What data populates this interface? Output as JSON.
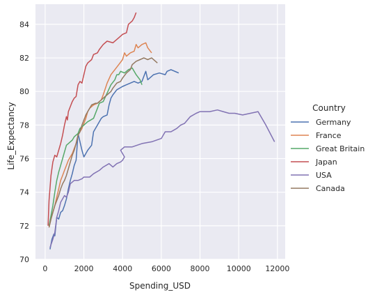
{
  "chart_data": {
    "type": "line",
    "xlabel": "Spending_USD",
    "ylabel": "Life_Expectancy",
    "xlim": [
      -500,
      12400
    ],
    "ylim": [
      70,
      85.2
    ],
    "xticks": [
      0,
      2000,
      4000,
      6000,
      8000,
      10000,
      12000
    ],
    "yticks": [
      70,
      72,
      74,
      76,
      78,
      80,
      82,
      84
    ],
    "grid": true,
    "legend": {
      "title": "Country",
      "placement": "right"
    },
    "series": [
      {
        "name": "Germany",
        "color": "#4c72b0",
        "points": [
          [
            250,
            70.6
          ],
          [
            350,
            71.2
          ],
          [
            450,
            71.5
          ],
          [
            500,
            71.4
          ],
          [
            600,
            72.5
          ],
          [
            700,
            72.4
          ],
          [
            800,
            72.8
          ],
          [
            900,
            72.9
          ],
          [
            1000,
            73.2
          ],
          [
            1100,
            73.6
          ],
          [
            1200,
            74.2
          ],
          [
            1300,
            74.7
          ],
          [
            1400,
            75.1
          ],
          [
            1500,
            75.6
          ],
          [
            1600,
            75.9
          ],
          [
            1700,
            77.5
          ],
          [
            1800,
            77.0
          ],
          [
            1900,
            76.5
          ],
          [
            2000,
            76.1
          ],
          [
            2100,
            76.3
          ],
          [
            2200,
            76.5
          ],
          [
            2400,
            76.8
          ],
          [
            2500,
            77.6
          ],
          [
            2700,
            78.0
          ],
          [
            2900,
            78.4
          ],
          [
            3000,
            78.5
          ],
          [
            3200,
            78.6
          ],
          [
            3300,
            79.2
          ],
          [
            3400,
            79.6
          ],
          [
            3500,
            79.8
          ],
          [
            3700,
            80.1
          ],
          [
            4000,
            80.3
          ],
          [
            4200,
            80.4
          ],
          [
            4400,
            80.5
          ],
          [
            4600,
            80.6
          ],
          [
            4800,
            80.5
          ],
          [
            5000,
            80.6
          ],
          [
            5100,
            80.9
          ],
          [
            5200,
            81.2
          ],
          [
            5300,
            80.7
          ],
          [
            5600,
            81.0
          ],
          [
            5900,
            81.1
          ],
          [
            6200,
            81.0
          ],
          [
            6300,
            81.2
          ],
          [
            6500,
            81.3
          ],
          [
            6900,
            81.1
          ]
        ]
      },
      {
        "name": "France",
        "color": "#dd8452",
        "points": [
          [
            200,
            71.9
          ],
          [
            300,
            72.4
          ],
          [
            400,
            72.8
          ],
          [
            500,
            73.2
          ],
          [
            600,
            73.7
          ],
          [
            700,
            74.2
          ],
          [
            800,
            74.7
          ],
          [
            900,
            75.0
          ],
          [
            1000,
            75.3
          ],
          [
            1100,
            75.6
          ],
          [
            1200,
            75.9
          ],
          [
            1400,
            76.3
          ],
          [
            1600,
            76.9
          ],
          [
            1700,
            77.4
          ],
          [
            1800,
            77.6
          ],
          [
            1900,
            77.8
          ],
          [
            2000,
            78.1
          ],
          [
            2100,
            78.4
          ],
          [
            2200,
            78.8
          ],
          [
            2300,
            79.0
          ],
          [
            2500,
            79.2
          ],
          [
            2700,
            79.3
          ],
          [
            2900,
            79.5
          ],
          [
            3000,
            79.8
          ],
          [
            3200,
            80.5
          ],
          [
            3400,
            81.0
          ],
          [
            3600,
            81.3
          ],
          [
            3800,
            81.6
          ],
          [
            4000,
            81.9
          ],
          [
            4100,
            82.3
          ],
          [
            4200,
            82.1
          ],
          [
            4400,
            82.3
          ],
          [
            4600,
            82.4
          ],
          [
            4700,
            82.8
          ],
          [
            4800,
            82.6
          ],
          [
            5000,
            82.8
          ],
          [
            5200,
            82.9
          ],
          [
            5300,
            82.6
          ],
          [
            5500,
            82.3
          ]
        ]
      },
      {
        "name": "Great Britain",
        "color": "#55a868",
        "points": [
          [
            200,
            72.0
          ],
          [
            300,
            72.6
          ],
          [
            400,
            73.2
          ],
          [
            500,
            74.0
          ],
          [
            600,
            74.7
          ],
          [
            700,
            75.2
          ],
          [
            800,
            75.6
          ],
          [
            900,
            76.0
          ],
          [
            1000,
            76.4
          ],
          [
            1100,
            76.8
          ],
          [
            1200,
            76.9
          ],
          [
            1300,
            77.0
          ],
          [
            1400,
            77.1
          ],
          [
            1500,
            77.3
          ],
          [
            1700,
            77.5
          ],
          [
            1800,
            77.8
          ],
          [
            2000,
            78.0
          ],
          [
            2200,
            78.2
          ],
          [
            2500,
            78.4
          ],
          [
            2700,
            79.0
          ],
          [
            2800,
            79.3
          ],
          [
            3000,
            79.4
          ],
          [
            3200,
            79.9
          ],
          [
            3400,
            80.4
          ],
          [
            3600,
            80.7
          ],
          [
            3700,
            81.0
          ],
          [
            3800,
            81.0
          ],
          [
            3900,
            81.2
          ],
          [
            4100,
            81.1
          ],
          [
            4300,
            81.3
          ],
          [
            4500,
            81.4
          ],
          [
            4700,
            81.0
          ],
          [
            4900,
            80.7
          ],
          [
            5000,
            80.4
          ]
        ]
      },
      {
        "name": "Japan",
        "color": "#c44e52",
        "points": [
          [
            150,
            72.0
          ],
          [
            200,
            73.5
          ],
          [
            300,
            75.0
          ],
          [
            400,
            75.8
          ],
          [
            500,
            76.2
          ],
          [
            600,
            76.1
          ],
          [
            700,
            76.5
          ],
          [
            800,
            76.9
          ],
          [
            900,
            77.4
          ],
          [
            1000,
            78.0
          ],
          [
            1100,
            78.5
          ],
          [
            1150,
            78.3
          ],
          [
            1200,
            78.8
          ],
          [
            1300,
            79.1
          ],
          [
            1400,
            79.4
          ],
          [
            1500,
            79.6
          ],
          [
            1600,
            79.7
          ],
          [
            1700,
            80.4
          ],
          [
            1800,
            80.6
          ],
          [
            1900,
            80.5
          ],
          [
            2000,
            81.0
          ],
          [
            2100,
            81.5
          ],
          [
            2200,
            81.7
          ],
          [
            2300,
            81.8
          ],
          [
            2400,
            81.9
          ],
          [
            2500,
            82.2
          ],
          [
            2700,
            82.3
          ],
          [
            2800,
            82.5
          ],
          [
            3000,
            82.8
          ],
          [
            3200,
            83.0
          ],
          [
            3500,
            82.9
          ],
          [
            3800,
            83.2
          ],
          [
            4000,
            83.4
          ],
          [
            4200,
            83.5
          ],
          [
            4300,
            84.0
          ],
          [
            4500,
            84.2
          ],
          [
            4600,
            84.4
          ],
          [
            4700,
            84.7
          ]
        ]
      },
      {
        "name": "USA",
        "color": "#8172b3",
        "points": [
          [
            250,
            70.7
          ],
          [
            400,
            71.2
          ],
          [
            500,
            71.6
          ],
          [
            600,
            72.5
          ],
          [
            700,
            72.9
          ],
          [
            800,
            73.4
          ],
          [
            900,
            73.6
          ],
          [
            1000,
            73.8
          ],
          [
            1100,
            73.7
          ],
          [
            1200,
            74.0
          ],
          [
            1300,
            74.5
          ],
          [
            1400,
            74.6
          ],
          [
            1500,
            74.7
          ],
          [
            1700,
            74.7
          ],
          [
            1900,
            74.8
          ],
          [
            2000,
            74.9
          ],
          [
            2300,
            74.9
          ],
          [
            2500,
            75.1
          ],
          [
            2800,
            75.3
          ],
          [
            3000,
            75.5
          ],
          [
            3300,
            75.7
          ],
          [
            3500,
            75.5
          ],
          [
            3700,
            75.7
          ],
          [
            3900,
            75.8
          ],
          [
            4000,
            75.9
          ],
          [
            4100,
            76.1
          ],
          [
            3900,
            76.5
          ],
          [
            4100,
            76.7
          ],
          [
            4500,
            76.7
          ],
          [
            5000,
            76.9
          ],
          [
            5500,
            77.0
          ],
          [
            6000,
            77.2
          ],
          [
            6200,
            77.6
          ],
          [
            6500,
            77.6
          ],
          [
            6800,
            77.8
          ],
          [
            7000,
            78.0
          ],
          [
            7200,
            78.1
          ],
          [
            7500,
            78.5
          ],
          [
            7800,
            78.7
          ],
          [
            8000,
            78.8
          ],
          [
            8200,
            78.8
          ],
          [
            8500,
            78.8
          ],
          [
            8900,
            78.9
          ],
          [
            9200,
            78.8
          ],
          [
            9500,
            78.7
          ],
          [
            9800,
            78.7
          ],
          [
            10200,
            78.6
          ],
          [
            10600,
            78.7
          ],
          [
            11000,
            78.8
          ],
          [
            11400,
            78.0
          ],
          [
            11850,
            77.0
          ]
        ]
      },
      {
        "name": "Canada",
        "color": "#937860",
        "points": [
          [
            200,
            71.9
          ],
          [
            300,
            72.4
          ],
          [
            400,
            72.8
          ],
          [
            500,
            73.2
          ],
          [
            600,
            73.5
          ],
          [
            700,
            73.8
          ],
          [
            800,
            74.2
          ],
          [
            900,
            74.5
          ],
          [
            1000,
            74.7
          ],
          [
            1100,
            75.0
          ],
          [
            1200,
            75.4
          ],
          [
            1300,
            75.8
          ],
          [
            1400,
            76.2
          ],
          [
            1500,
            76.5
          ],
          [
            1600,
            76.9
          ],
          [
            1700,
            77.4
          ],
          [
            1800,
            77.6
          ],
          [
            1900,
            78.0
          ],
          [
            2000,
            78.3
          ],
          [
            2100,
            78.6
          ],
          [
            2200,
            78.8
          ],
          [
            2400,
            79.2
          ],
          [
            2600,
            79.3
          ],
          [
            2700,
            79.3
          ],
          [
            2900,
            79.5
          ],
          [
            3000,
            79.6
          ],
          [
            3200,
            79.8
          ],
          [
            3400,
            80.0
          ],
          [
            3500,
            80.2
          ],
          [
            3700,
            80.5
          ],
          [
            3900,
            80.6
          ],
          [
            4000,
            80.8
          ],
          [
            4200,
            81.1
          ],
          [
            4400,
            81.3
          ],
          [
            4500,
            81.6
          ],
          [
            4700,
            81.8
          ],
          [
            4900,
            81.9
          ],
          [
            5100,
            82.0
          ],
          [
            5300,
            81.9
          ],
          [
            5500,
            82.0
          ],
          [
            5800,
            81.7
          ]
        ]
      }
    ]
  }
}
